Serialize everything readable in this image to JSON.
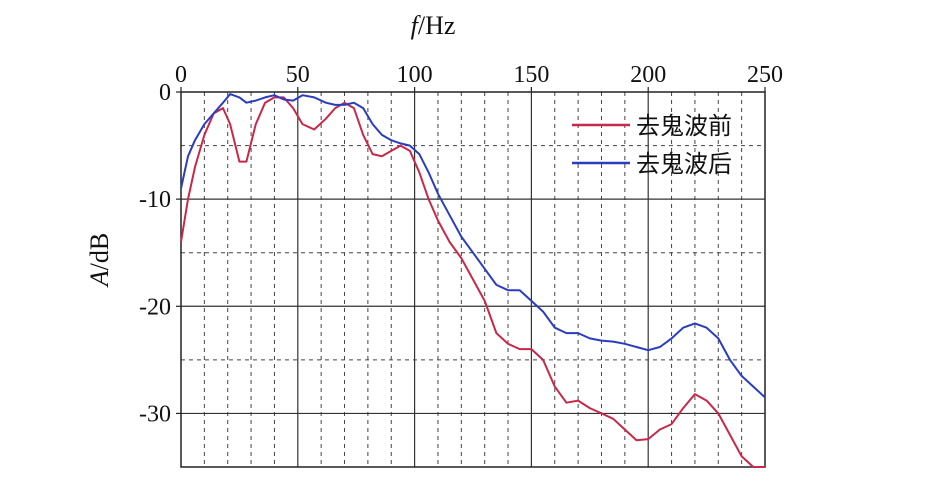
{
  "chart_data": {
    "type": "line",
    "xlabel_italic": "f",
    "xlabel_rest": "/Hz",
    "ylabel_italic": "A",
    "ylabel_rest": "/dB",
    "xlim": [
      0,
      250
    ],
    "ylim": [
      -35,
      0
    ],
    "x_ticks": [
      0,
      50,
      100,
      150,
      200,
      250
    ],
    "y_ticks": [
      0,
      -10,
      -20,
      -30
    ],
    "x_tick_labels": [
      "0",
      "50",
      "100",
      "150",
      "200",
      "250"
    ],
    "y_tick_labels": [
      "0",
      "-10",
      "-20",
      "-30"
    ],
    "x_axis_position": "top",
    "grid": true,
    "legend_position": "top-right",
    "series": [
      {
        "name": "去鬼波前",
        "color": "#c8284a",
        "x": [
          0,
          3,
          6,
          10,
          14,
          18,
          21,
          25,
          28,
          32,
          36,
          40,
          44,
          48,
          52,
          57,
          62,
          66,
          70,
          74,
          78,
          82,
          86,
          90,
          94,
          98,
          102,
          106,
          110,
          115,
          120,
          125,
          130,
          135,
          140,
          145,
          150,
          155,
          160,
          165,
          170,
          175,
          180,
          185,
          190,
          195,
          200,
          205,
          210,
          215,
          220,
          225,
          230,
          235,
          240,
          245,
          250
        ],
        "y": [
          -14,
          -10,
          -7,
          -4,
          -2,
          -1.5,
          -3,
          -6.5,
          -6.5,
          -3,
          -1,
          -0.5,
          -0.5,
          -1.5,
          -3,
          -3.5,
          -2.5,
          -1.5,
          -1,
          -1.5,
          -4,
          -5.8,
          -6,
          -5.5,
          -5,
          -5.5,
          -7.5,
          -10,
          -12,
          -14,
          -15.5,
          -17.5,
          -19.5,
          -22.5,
          -23.5,
          -24,
          -24,
          -25,
          -27.5,
          -29,
          -28.8,
          -29.5,
          -30,
          -30.5,
          -31.5,
          -32.5,
          -32.4,
          -31.5,
          -31,
          -29.5,
          -28.2,
          -28.8,
          -30,
          -32,
          -34,
          -35,
          -35
        ]
      },
      {
        "name": "去鬼波后",
        "color": "#2a3dc0",
        "x": [
          0,
          3,
          6,
          10,
          14,
          18,
          21,
          25,
          28,
          32,
          36,
          40,
          44,
          48,
          52,
          57,
          62,
          66,
          70,
          74,
          78,
          82,
          86,
          90,
          94,
          98,
          102,
          106,
          110,
          115,
          120,
          125,
          130,
          135,
          140,
          145,
          150,
          155,
          160,
          165,
          170,
          175,
          180,
          185,
          190,
          195,
          200,
          205,
          210,
          215,
          220,
          225,
          230,
          235,
          240,
          245,
          250
        ],
        "y": [
          -9,
          -6,
          -4.5,
          -3,
          -2,
          -1,
          -0.2,
          -0.5,
          -1,
          -0.8,
          -0.5,
          -0.3,
          -0.7,
          -0.8,
          -0.3,
          -0.5,
          -1,
          -1.2,
          -1.2,
          -1,
          -1.5,
          -3,
          -4,
          -4.5,
          -4.8,
          -5,
          -5.8,
          -7.5,
          -9.5,
          -11.5,
          -13.5,
          -15,
          -16.5,
          -18,
          -18.5,
          -18.5,
          -19.5,
          -20.5,
          -22,
          -22.5,
          -22.5,
          -23,
          -23.2,
          -23.3,
          -23.5,
          -23.8,
          -24.1,
          -23.8,
          -23,
          -22,
          -21.6,
          -22,
          -23,
          -25,
          -26.5,
          -27.5,
          -28.5
        ]
      }
    ]
  }
}
